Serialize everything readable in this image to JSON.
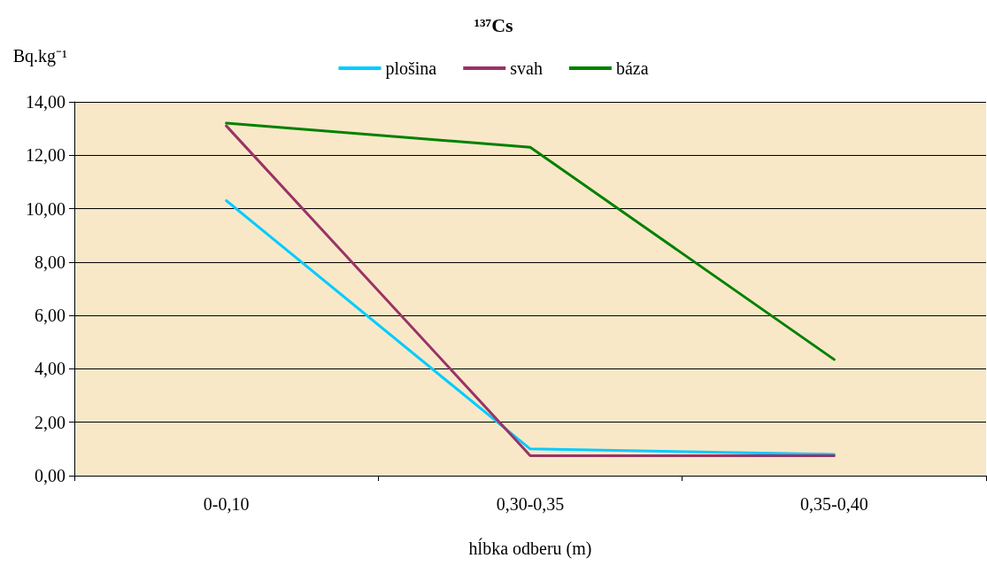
{
  "chart_data": {
    "type": "line",
    "title": "¹³⁷Cs",
    "xlabel": "hĺbka odberu (m)",
    "ylabel": "Bq.kg⁻¹",
    "categories": [
      "0-0,10",
      "0,30-0,35",
      "0,35-0,40"
    ],
    "series": [
      {
        "name": "plošina",
        "color": "#00ccff",
        "values": [
          10.3,
          1.0,
          0.8
        ]
      },
      {
        "name": "svah",
        "color": "#993366",
        "values": [
          13.1,
          0.75,
          0.75
        ]
      },
      {
        "name": "báza",
        "color": "#008000",
        "values": [
          13.2,
          12.3,
          4.35
        ]
      }
    ],
    "ylim": [
      0,
      14
    ],
    "yticks": [
      {
        "value": 0,
        "label": "0,00"
      },
      {
        "value": 2,
        "label": "2,00"
      },
      {
        "value": 4,
        "label": "4,00"
      },
      {
        "value": 6,
        "label": "6,00"
      },
      {
        "value": 8,
        "label": "8,00"
      },
      {
        "value": 10,
        "label": "10,00"
      },
      {
        "value": 12,
        "label": "12,00"
      },
      {
        "value": 14,
        "label": "14,00"
      }
    ],
    "grid": "y",
    "legend": "top",
    "marker": "none",
    "line_style": "solid"
  }
}
